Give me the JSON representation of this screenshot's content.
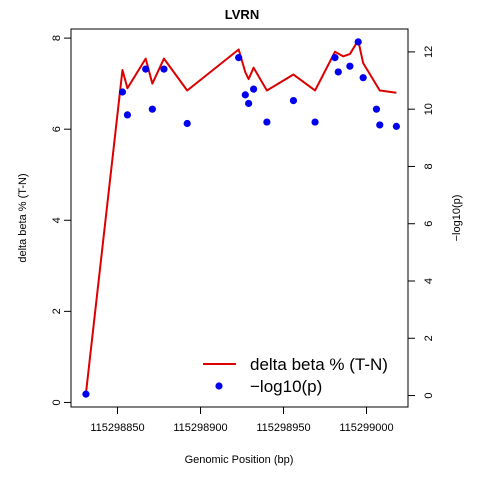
{
  "chart_data": {
    "type": "line",
    "title": "LVRN",
    "xlabel": "Genomic Position (bp)",
    "ylabel": "delta beta % (T-N)",
    "ylabel_right": "−log10(p)",
    "xlim": [
      115298822,
      115299025
    ],
    "ylim": [
      -0.1,
      8.2
    ],
    "y2lim": [
      -0.4,
      12.8
    ],
    "x_ticks": [
      115298850,
      115298900,
      115298950,
      115299000
    ],
    "y_ticks": [
      0,
      2,
      4,
      6,
      8
    ],
    "y2_ticks": [
      0,
      2,
      4,
      6,
      8,
      10,
      12
    ],
    "grid": false,
    "legend_position": "bottom-right",
    "colors": {
      "line": "#dd0000",
      "points": "#0000ee"
    },
    "series": [
      {
        "name": "delta beta % (T-N)",
        "axis": "left",
        "kind": "line",
        "x": [
          115298831,
          115298853,
          115298856,
          115298867,
          115298871,
          115298878,
          115298892,
          115298923,
          115298927,
          115298929,
          115298932,
          115298940,
          115298956,
          115298969,
          115298981,
          115298986,
          115298990,
          115298995,
          115298998,
          115299008,
          115299018
        ],
        "y": [
          0.2,
          7.3,
          6.9,
          7.55,
          7.0,
          7.55,
          6.85,
          7.75,
          7.25,
          7.1,
          7.35,
          6.85,
          7.2,
          6.85,
          7.7,
          7.6,
          7.65,
          7.95,
          7.45,
          6.85,
          6.8
        ]
      },
      {
        "name": "−log10(p)",
        "axis": "right",
        "kind": "scatter",
        "x": [
          115298831,
          115298853,
          115298856,
          115298867,
          115298871,
          115298878,
          115298892,
          115298923,
          115298927,
          115298929,
          115298932,
          115298940,
          115298956,
          115298969,
          115298981,
          115298983,
          115298990,
          115298995,
          115298998,
          115299006,
          115299008,
          115299018
        ],
        "y": [
          0.05,
          10.6,
          9.8,
          11.4,
          10.0,
          11.4,
          9.5,
          11.8,
          10.5,
          10.2,
          10.7,
          9.55,
          10.3,
          9.55,
          11.8,
          11.3,
          11.5,
          12.35,
          11.1,
          10.0,
          9.45,
          9.4
        ]
      }
    ],
    "legend": [
      {
        "label": "delta beta % (T-N)",
        "kind": "line"
      },
      {
        "label": "−log10(p)",
        "kind": "point"
      }
    ]
  }
}
